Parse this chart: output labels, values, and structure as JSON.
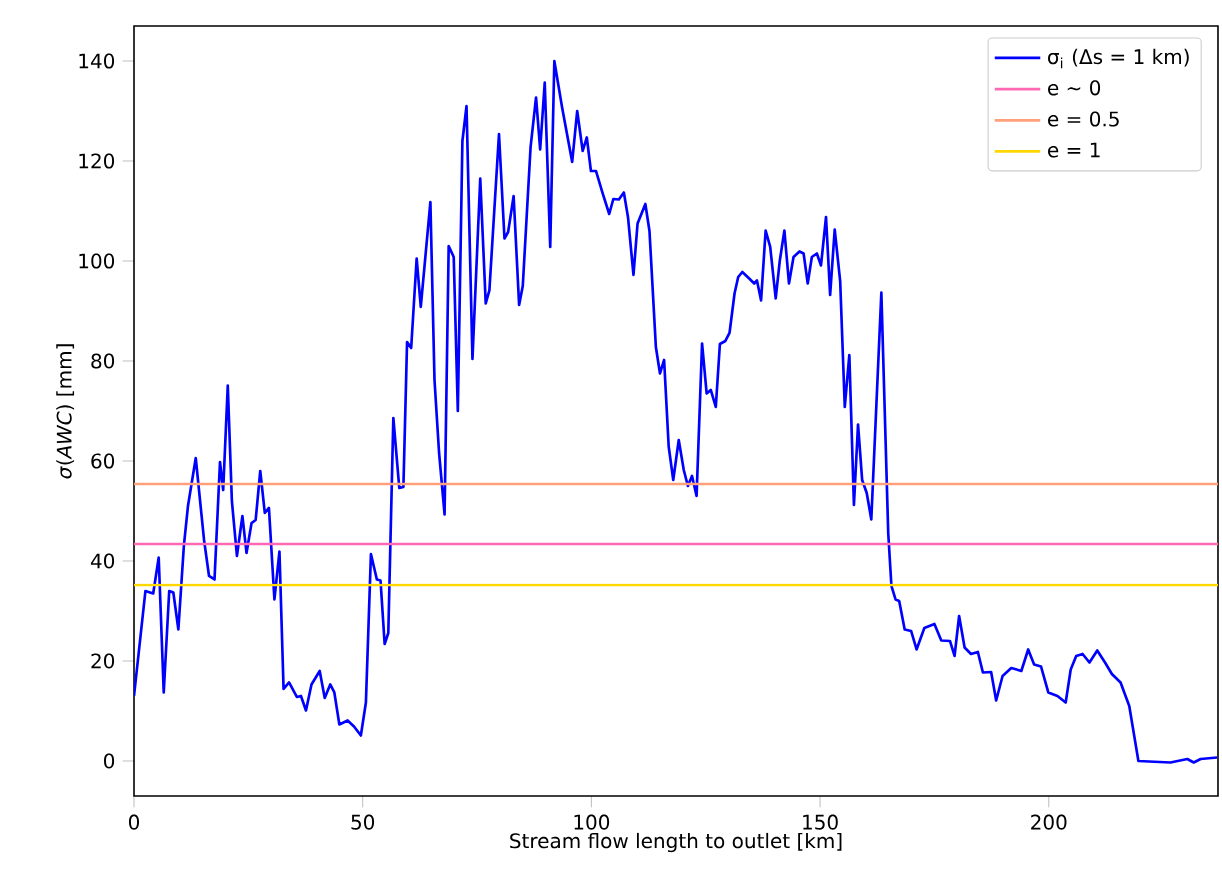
{
  "chart_data": {
    "type": "line",
    "xlabel": "Stream flow length to outlet [km]",
    "ylabel": "*σ*(*AWC*) [mm]",
    "xlim": [
      0,
      237
    ],
    "ylim": [
      -7,
      147
    ],
    "xticks": [
      0,
      50,
      100,
      150,
      200
    ],
    "yticks": [
      0,
      20,
      40,
      60,
      80,
      100,
      120,
      140
    ],
    "legend": "top right",
    "grid": false,
    "series": [
      {
        "name": "σ$_{i}$ (Δs = 1 km)",
        "color": "#0000ff",
        "x": [
          0,
          2.5,
          4.2,
          5.4,
          6.5,
          7.7,
          8.6,
          9.7,
          10.9,
          11.8,
          13.5,
          15.3,
          16.4,
          17.6,
          18.8,
          19.5,
          20.5,
          21.4,
          22.5,
          23.7,
          24.6,
          25.7,
          26.6,
          27.6,
          28.6,
          29.5,
          30.7,
          31.8,
          32.7,
          33.9,
          35.6,
          36.5,
          37.6,
          38.8,
          40.6,
          41.7,
          42.9,
          43.8,
          44.9,
          46.7,
          48.1,
          49.6,
          50.7,
          51.8,
          53.1,
          53.9,
          54.8,
          55.6,
          56.7,
          58,
          58.9,
          59.7,
          60.6,
          61.8,
          62.7,
          64.8,
          65.7,
          66.7,
          67.9,
          68.8,
          69.9,
          70.8,
          71.8,
          72.7,
          74,
          75.7,
          76.9,
          77.7,
          79.8,
          81,
          81.8,
          83,
          84.2,
          85,
          86.7,
          87.9,
          88.8,
          89.8,
          91,
          91.9,
          93.6,
          95.8,
          96.9,
          98.1,
          99,
          99.9,
          101,
          102.5,
          103.9,
          104.8,
          106,
          107.1,
          108,
          109.2,
          110.1,
          111.8,
          112.7,
          114.1,
          115,
          115.9,
          116.9,
          117.9,
          119.1,
          120.2,
          121.1,
          122,
          123,
          124.2,
          125.2,
          126.1,
          127.2,
          128.1,
          129.3,
          130.2,
          131.3,
          132.1,
          133,
          134.5,
          135.6,
          136.2,
          137.1,
          138.1,
          139.1,
          140.3,
          141.2,
          142.2,
          143.2,
          144.2,
          145.5,
          146.4,
          147.3,
          148.2,
          149.3,
          150.2,
          151.3,
          152.2,
          153.2,
          154.4,
          155.4,
          156.4,
          157.4,
          158.3,
          159.2,
          160.2,
          161.2,
          163.4,
          164.9,
          165.6,
          166.5,
          167.3,
          168.5,
          169.9,
          171.1,
          172.8,
          175,
          176.5,
          178.4,
          179.4,
          180.4,
          181.6,
          183,
          184.5,
          185.6,
          187.4,
          188.5,
          189.9,
          191.8,
          194,
          195.5,
          196.8,
          198.3,
          199.9,
          201.9,
          203.7,
          204.8,
          206,
          207.4,
          208.9,
          210.6,
          212.3,
          213.8,
          215.7,
          217.6,
          219.6,
          226.6,
          230.3,
          231.7,
          233.2,
          236.8
        ],
        "values": [
          13,
          34,
          33.5,
          40.7,
          13.7,
          34,
          33.7,
          26.3,
          43,
          51,
          60.6,
          44.3,
          37,
          36.3,
          59.8,
          54.2,
          75.1,
          52,
          41,
          49,
          41.6,
          47.6,
          48.2,
          58,
          49.6,
          50.6,
          32.3,
          41.9,
          14.4,
          15.7,
          12.8,
          13,
          10.1,
          15.3,
          18,
          12.6,
          15.3,
          13.7,
          7.3,
          8.1,
          6.9,
          5.1,
          11.7,
          41.4,
          36.3,
          36.1,
          23.4,
          25.6,
          68.6,
          54.6,
          54.8,
          83.8,
          82.6,
          100.5,
          90.8,
          111.8,
          76.2,
          61.6,
          49.3,
          103,
          100.8,
          70,
          124,
          131,
          80.4,
          116.5,
          91.5,
          94.1,
          125.4,
          104.5,
          105.8,
          113,
          91.2,
          95,
          122.7,
          132.7,
          122.3,
          135.7,
          102.8,
          140,
          130.7,
          119.8,
          130,
          122,
          124.7,
          118,
          118,
          113.4,
          109.4,
          112.4,
          112.3,
          113.7,
          108.8,
          97.2,
          107.5,
          111.4,
          106,
          82.8,
          77.5,
          80.2,
          62.9,
          56.2,
          64.2,
          58.2,
          55,
          57,
          53,
          83.5,
          73.5,
          74.2,
          70.8,
          83.4,
          84,
          85.6,
          93.5,
          96.8,
          97.8,
          96.5,
          95.5,
          96.1,
          92.1,
          106.1,
          102.8,
          92.5,
          100.1,
          106.1,
          95.5,
          100.8,
          101.9,
          101.5,
          95.5,
          100.8,
          101.5,
          99.1,
          108.8,
          93.2,
          106.3,
          95.9,
          70.8,
          81.2,
          51.2,
          67.3,
          56.2,
          53.6,
          48.3,
          93.7,
          45.6,
          35,
          32.3,
          32,
          26.3,
          26,
          22.3,
          26.6,
          27.4,
          24.1,
          24,
          21,
          29,
          22.7,
          21.4,
          21.8,
          17.7,
          17.8,
          12.1,
          17,
          18.6,
          18,
          22.3,
          19.3,
          18.9,
          13.7,
          13,
          11.7,
          18.3,
          21,
          21.4,
          19.7,
          22.1,
          19.7,
          17.4,
          15.7,
          11,
          0,
          -0.3,
          0.4,
          -0.3,
          0.4,
          0.7
        ]
      },
      {
        "name": "e ~ 0",
        "type": "line",
        "color": "#ff69b4",
        "x": [
          0,
          237
        ],
        "values": [
          43.4,
          43.4
        ]
      },
      {
        "name": "e = 0.5",
        "type": "line",
        "color": "#ffa07a",
        "x": [
          0,
          237
        ],
        "values": [
          55.4,
          55.4
        ]
      },
      {
        "name": "e = 1",
        "type": "line",
        "color": "#ffd700",
        "x": [
          0,
          237
        ],
        "values": [
          35.2,
          35.2
        ]
      }
    ]
  }
}
